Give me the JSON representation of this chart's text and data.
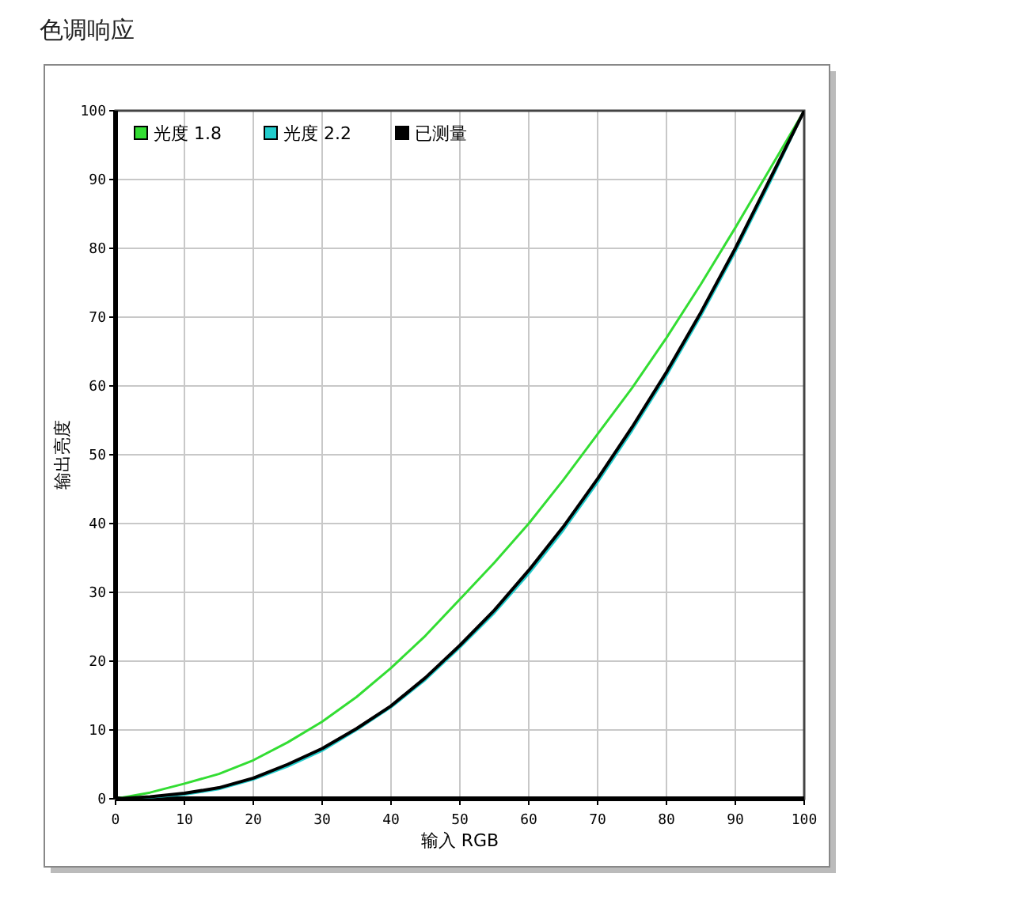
{
  "chart_data": {
    "type": "line",
    "title": "色调响应",
    "xlabel": "输入 RGB",
    "ylabel": "输出亮度",
    "x": [
      0,
      5,
      10,
      15,
      20,
      25,
      30,
      35,
      40,
      45,
      50,
      55,
      60,
      65,
      70,
      75,
      80,
      85,
      90,
      95,
      100
    ],
    "series": [
      {
        "name": "光度 1.8",
        "color": "#33dd33",
        "values": [
          0,
          0.9,
          2.2,
          3.6,
          5.6,
          8.2,
          11.2,
          14.8,
          19,
          23.7,
          29,
          34.3,
          40,
          46.3,
          53,
          59.7,
          67,
          74.8,
          83,
          91.5,
          100
        ]
      },
      {
        "name": "光度 2.2",
        "color": "#22cccc",
        "values": [
          0,
          0.2,
          0.6,
          1.4,
          2.8,
          4.7,
          7,
          10,
          13.3,
          17.3,
          22,
          27,
          32.7,
          39,
          46,
          53.5,
          61.5,
          70.2,
          79.5,
          89.5,
          100
        ]
      },
      {
        "name": "已测量",
        "color": "#000000",
        "values": [
          0,
          0.3,
          0.8,
          1.6,
          3,
          5,
          7.3,
          10.2,
          13.5,
          17.6,
          22.3,
          27.4,
          33.2,
          39.5,
          46.5,
          54,
          62,
          70.7,
          80,
          90,
          100
        ]
      }
    ],
    "xlim": [
      0,
      100
    ],
    "ylim": [
      0,
      100
    ],
    "xticks": [
      0,
      10,
      20,
      30,
      40,
      50,
      60,
      70,
      80,
      90,
      100
    ],
    "yticks": [
      0,
      10,
      20,
      30,
      40,
      50,
      60,
      70,
      80,
      90,
      100
    ],
    "grid": true,
    "legend": "top left",
    "marker": "none",
    "line_style": "solid"
  }
}
